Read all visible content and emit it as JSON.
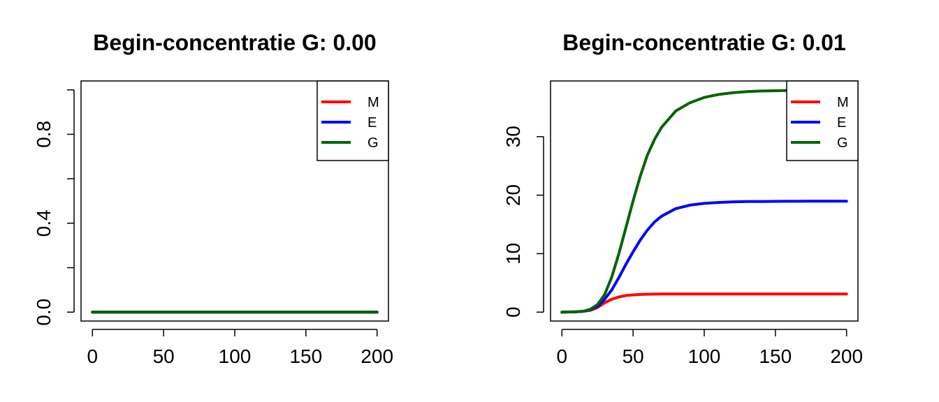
{
  "chart_data": [
    {
      "type": "line",
      "title": "Begin-concentratie G: 0.00",
      "xlabel": "",
      "ylabel": "",
      "xlim": [
        0,
        200
      ],
      "ylim": [
        0,
        1
      ],
      "x_ticks": [
        0,
        50,
        100,
        150,
        200
      ],
      "x_tick_labels": [
        "0",
        "50",
        "100",
        "150",
        "200"
      ],
      "y_ticks": [
        0,
        0.2,
        0.4,
        0.6,
        0.8,
        1.0
      ],
      "y_tick_labels": [
        "0.0",
        "",
        "0.4",
        "",
        "0.8",
        ""
      ],
      "legend_position": "top-right",
      "grid": false,
      "x": [
        0,
        25,
        50,
        75,
        100,
        125,
        150,
        175,
        200
      ],
      "series": [
        {
          "name": "M",
          "color": "#ff0000",
          "values": [
            0,
            0,
            0,
            0,
            0,
            0,
            0,
            0,
            0
          ]
        },
        {
          "name": "E",
          "color": "#0000ff",
          "values": [
            0,
            0,
            0,
            0,
            0,
            0,
            0,
            0,
            0
          ]
        },
        {
          "name": "G",
          "color": "#006400",
          "values": [
            0,
            0,
            0,
            0,
            0,
            0,
            0,
            0,
            0
          ]
        }
      ]
    },
    {
      "type": "line",
      "title": "Begin-concentratie G: 0.01",
      "xlabel": "",
      "ylabel": "",
      "xlim": [
        0,
        200
      ],
      "ylim": [
        0,
        38
      ],
      "x_ticks": [
        0,
        50,
        100,
        150,
        200
      ],
      "x_tick_labels": [
        "0",
        "50",
        "100",
        "150",
        "200"
      ],
      "y_ticks": [
        0,
        10,
        20,
        30
      ],
      "y_tick_labels": [
        "0",
        "10",
        "20",
        "30"
      ],
      "legend_position": "top-right",
      "grid": false,
      "x": [
        0,
        10,
        15,
        20,
        25,
        30,
        35,
        40,
        45,
        50,
        55,
        60,
        65,
        70,
        80,
        90,
        100,
        110,
        120,
        130,
        140,
        150,
        160,
        170,
        180,
        190,
        200
      ],
      "series": [
        {
          "name": "M",
          "color": "#ff0000",
          "values": [
            0.0,
            0.05,
            0.15,
            0.3,
            0.8,
            1.6,
            2.2,
            2.6,
            2.85,
            2.95,
            3.02,
            3.06,
            3.08,
            3.1,
            3.1,
            3.1,
            3.1,
            3.1,
            3.1,
            3.1,
            3.1,
            3.1,
            3.1,
            3.1,
            3.1,
            3.1,
            3.1
          ]
        },
        {
          "name": "E",
          "color": "#0000ff",
          "values": [
            0.0,
            0.05,
            0.15,
            0.4,
            1.0,
            2.2,
            3.8,
            5.9,
            8.2,
            10.3,
            12.3,
            14.0,
            15.4,
            16.4,
            17.7,
            18.3,
            18.6,
            18.75,
            18.85,
            18.9,
            18.92,
            18.94,
            18.95,
            18.96,
            18.97,
            18.97,
            18.98
          ]
        },
        {
          "name": "G",
          "color": "#006400",
          "values": [
            0.0,
            0.05,
            0.15,
            0.5,
            1.3,
            3.0,
            6.0,
            10.0,
            14.5,
            19.0,
            23.2,
            26.8,
            29.5,
            31.6,
            34.4,
            35.8,
            36.7,
            37.2,
            37.5,
            37.7,
            37.8,
            37.85,
            37.9,
            37.95,
            37.95,
            38.0,
            38.0
          ]
        }
      ]
    }
  ]
}
